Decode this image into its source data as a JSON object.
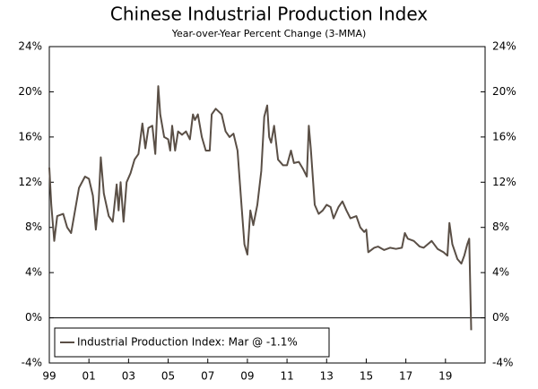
{
  "chart_data": {
    "type": "line",
    "title": "Chinese Industrial Production Index",
    "subtitle": "Year-over-Year Percent Change (3-MMA)",
    "x": [
      1999.0,
      1999.1,
      1999.25,
      1999.4,
      1999.7,
      1999.9,
      2000.1,
      2000.3,
      2000.5,
      2000.8,
      2001.0,
      2001.2,
      2001.35,
      2001.5,
      2001.6,
      2001.75,
      2002.0,
      2002.2,
      2002.4,
      2002.5,
      2002.6,
      2002.75,
      2002.9,
      2003.1,
      2003.3,
      2003.5,
      2003.7,
      2003.85,
      2004.0,
      2004.2,
      2004.35,
      2004.5,
      2004.6,
      2004.8,
      2005.0,
      2005.1,
      2005.2,
      2005.35,
      2005.5,
      2005.7,
      2005.9,
      2006.1,
      2006.25,
      2006.35,
      2006.5,
      2006.7,
      2006.9,
      2007.1,
      2007.2,
      2007.4,
      2007.7,
      2007.9,
      2008.1,
      2008.3,
      2008.5,
      2008.7,
      2008.85,
      2009.0,
      2009.15,
      2009.3,
      2009.5,
      2009.7,
      2009.85,
      2010.0,
      2010.1,
      2010.2,
      2010.35,
      2010.55,
      2010.8,
      2011.0,
      2011.2,
      2011.35,
      2011.6,
      2011.8,
      2012.0,
      2012.1,
      2012.2,
      2012.4,
      2012.6,
      2012.8,
      2013.0,
      2013.2,
      2013.35,
      2013.6,
      2013.8,
      2014.0,
      2014.2,
      2014.5,
      2014.7,
      2014.9,
      2015.0,
      2015.1,
      2015.4,
      2015.6,
      2015.9,
      2016.2,
      2016.5,
      2016.8,
      2016.95,
      2017.1,
      2017.4,
      2017.7,
      2017.9,
      2018.1,
      2018.3,
      2018.6,
      2018.9,
      2019.1,
      2019.2,
      2019.35,
      2019.6,
      2019.8,
      2019.95,
      2020.1,
      2020.2,
      2020.3
    ],
    "series": [
      {
        "name": "Industrial Production Index: Mar @ -1.1%",
        "color": "#5a4f46",
        "values": [
          13.3,
          10,
          6.8,
          9,
          9.2,
          8,
          7.5,
          9.5,
          11.5,
          12.5,
          12.3,
          10.8,
          7.8,
          10.5,
          14.2,
          11,
          9,
          8.5,
          11.8,
          9.5,
          12,
          8.5,
          12,
          12.8,
          14,
          14.5,
          17.2,
          15,
          16.8,
          17,
          14.5,
          20.5,
          18,
          16,
          15.8,
          14.8,
          17,
          14.8,
          16.5,
          16.2,
          16.5,
          15.8,
          18,
          17.5,
          18,
          16,
          14.8,
          14.8,
          18,
          18.5,
          18,
          16.5,
          16,
          16.3,
          14.8,
          10,
          6.5,
          5.6,
          9.5,
          8.2,
          10,
          13,
          17.8,
          18.8,
          16,
          15.5,
          17,
          14,
          13.5,
          13.5,
          14.8,
          13.7,
          13.8,
          13.2,
          12.5,
          17,
          15,
          10,
          9.2,
          9.5,
          10,
          9.8,
          8.8,
          9.8,
          10.3,
          9.5,
          8.8,
          9,
          8,
          7.6,
          7.8,
          5.8,
          6.2,
          6.3,
          6.0,
          6.2,
          6.1,
          6.2,
          7.5,
          7,
          6.8,
          6.3,
          6.2,
          6.5,
          6.8,
          6.1,
          5.8,
          5.5,
          8.4,
          6.5,
          5.2,
          4.8,
          5.5,
          6.5,
          7,
          -1.1
        ]
      }
    ],
    "xlim": [
      1999,
      2021
    ],
    "xticks": [
      {
        "value": 1999,
        "label": "99"
      },
      {
        "value": 2001,
        "label": "01"
      },
      {
        "value": 2003,
        "label": "03"
      },
      {
        "value": 2005,
        "label": "05"
      },
      {
        "value": 2007,
        "label": "07"
      },
      {
        "value": 2009,
        "label": "09"
      },
      {
        "value": 2011,
        "label": "11"
      },
      {
        "value": 2013,
        "label": "13"
      },
      {
        "value": 2015,
        "label": "15"
      },
      {
        "value": 2017,
        "label": "17"
      },
      {
        "value": 2019,
        "label": "19"
      }
    ],
    "ylim": [
      -4,
      24
    ],
    "yticks": [
      {
        "value": -4,
        "label": "-4%"
      },
      {
        "value": 0,
        "label": "0%"
      },
      {
        "value": 4,
        "label": "4%"
      },
      {
        "value": 8,
        "label": "8%"
      },
      {
        "value": 12,
        "label": "12%"
      },
      {
        "value": 16,
        "label": "16%"
      },
      {
        "value": 20,
        "label": "20%"
      },
      {
        "value": 24,
        "label": "24%"
      }
    ],
    "legend": "lower left"
  }
}
